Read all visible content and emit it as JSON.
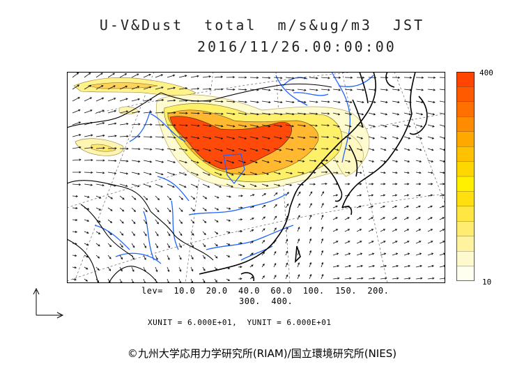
{
  "header": {
    "title": "U-V&Dust  total  m/s&ug/m3  JST",
    "datetime": "2016/11/26.00:00:00"
  },
  "colorbar": {
    "max_label": "400",
    "min_label": "10",
    "colors": [
      "#fffff0",
      "#fffacd",
      "#fff3a0",
      "#ffec70",
      "#ffe640",
      "#ffdf10",
      "#fff000",
      "#ffd700",
      "#ffc200",
      "#ffa800",
      "#ff8c00",
      "#ff7000",
      "#ff5a00",
      "#ff4500"
    ]
  },
  "legend": {
    "levels_line1": "lev=  10.0  20.0  40.0  60.0  100.  150.  200.",
    "levels_line2": "300.  400.",
    "unit_text": "XUNIT = 6.000E+01,  YUNIT = 6.000E+01"
  },
  "footer": {
    "credit": "©九州大学応用力学研究所(RIAM)/国立環境研究所(NIES)"
  },
  "colors": {
    "dust_peak": "#ff4500",
    "dust_mid": "#ffc800",
    "dust_low": "#fff5b0",
    "river": "#1e64ff",
    "coast": "#000000",
    "wind_vector": "#111111",
    "graticule": "#777777"
  }
}
